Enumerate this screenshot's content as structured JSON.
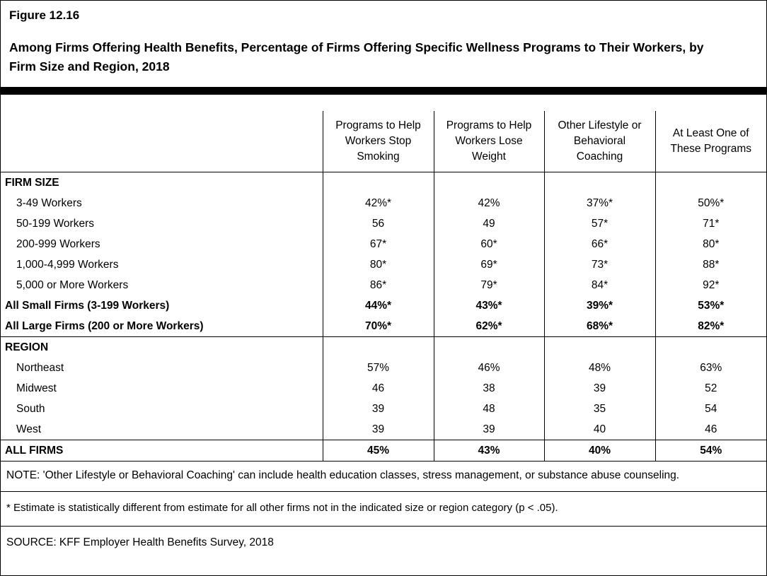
{
  "figure": {
    "label": "Figure 12.16",
    "title": "Among Firms Offering Health Benefits, Percentage of Firms Offering Specific Wellness Programs to Their Workers, by Firm Size and Region, 2018"
  },
  "chart_data": {
    "type": "table",
    "title": "Among Firms Offering Health Benefits, Percentage of Firms Offering Specific Wellness Programs to Their Workers, by Firm Size and Region, 2018",
    "columns": [
      "Programs to Help Workers Stop Smoking",
      "Programs to Help Workers Lose Weight",
      "Other Lifestyle or Behavioral Coaching",
      "At Least One of These Programs"
    ],
    "rows": [
      {
        "label": "FIRM SIZE",
        "style": "section",
        "values": [
          "",
          "",
          "",
          ""
        ]
      },
      {
        "label": "3-49 Workers",
        "style": "indent",
        "values": [
          "42%*",
          "42%",
          "37%*",
          "50%*"
        ]
      },
      {
        "label": "50-199 Workers",
        "style": "indent",
        "values": [
          "56",
          "49",
          "57*",
          "71*"
        ]
      },
      {
        "label": "200-999 Workers",
        "style": "indent",
        "values": [
          "67*",
          "60*",
          "66*",
          "80*"
        ]
      },
      {
        "label": "1,000-4,999 Workers",
        "style": "indent",
        "values": [
          "80*",
          "69*",
          "73*",
          "88*"
        ]
      },
      {
        "label": "5,000 or More Workers",
        "style": "indent",
        "values": [
          "86*",
          "79*",
          "84*",
          "92*"
        ]
      },
      {
        "label": "All Small Firms (3-199 Workers)",
        "style": "bold",
        "values": [
          "44%*",
          "43%*",
          "39%*",
          "53%*"
        ]
      },
      {
        "label": "All Large Firms (200 or More Workers)",
        "style": "bold",
        "values": [
          "70%*",
          "62%*",
          "68%*",
          "82%*"
        ]
      },
      {
        "label": "REGION",
        "style": "section",
        "values": [
          "",
          "",
          "",
          ""
        ]
      },
      {
        "label": "Northeast",
        "style": "indent",
        "values": [
          "57%",
          "46%",
          "48%",
          "63%"
        ]
      },
      {
        "label": "Midwest",
        "style": "indent",
        "values": [
          "46",
          "38",
          "39",
          "52"
        ]
      },
      {
        "label": "South",
        "style": "indent",
        "values": [
          "39",
          "48",
          "35",
          "54"
        ]
      },
      {
        "label": "West",
        "style": "indent",
        "values": [
          "39",
          "39",
          "40",
          "46"
        ]
      },
      {
        "label": "ALL FIRMS",
        "style": "total",
        "values": [
          "45%",
          "43%",
          "40%",
          "54%"
        ]
      }
    ]
  },
  "notes": {
    "note": "NOTE: 'Other Lifestyle or Behavioral Coaching' can include health education classes, stress management, or substance abuse counseling.",
    "footnote": "* Estimate is statistically different from estimate for all other firms not in the indicated size or region category (p < .05).",
    "source": "SOURCE: KFF Employer Health Benefits Survey, 2018"
  }
}
